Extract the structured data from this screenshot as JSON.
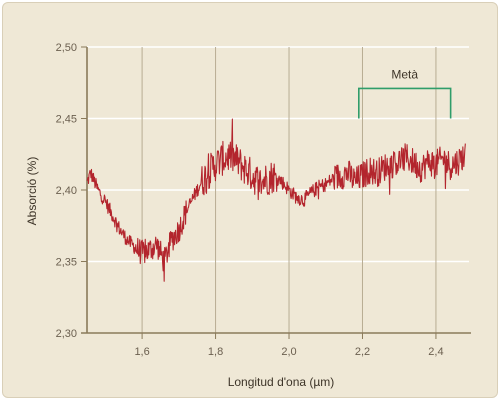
{
  "chart_data": {
    "type": "line",
    "xlabel": "Longitud d'ona (µm)",
    "ylabel": "Absorció (%)",
    "xlim": [
      1.45,
      2.49
    ],
    "ylim": [
      2.3,
      2.5
    ],
    "x_ticks": [
      "1,6",
      "1,8",
      "2,0",
      "2,2",
      "2,4"
    ],
    "x_tick_values": [
      1.6,
      1.8,
      2.0,
      2.2,
      2.4
    ],
    "y_ticks": [
      "2,50",
      "2,45",
      "2,40",
      "2,35",
      "2,30"
    ],
    "y_tick_values": [
      2.5,
      2.45,
      2.4,
      2.35,
      2.3
    ],
    "grid": true,
    "series": [
      {
        "color": "#b3252d",
        "x": [
          1.45,
          1.46,
          1.48,
          1.5,
          1.52,
          1.54,
          1.56,
          1.58,
          1.6,
          1.62,
          1.64,
          1.66,
          1.68,
          1.7,
          1.72,
          1.74,
          1.76,
          1.78,
          1.8,
          1.82,
          1.84,
          1.86,
          1.88,
          1.9,
          1.92,
          1.94,
          1.96,
          1.98,
          2.0,
          2.02,
          2.04,
          2.06,
          2.08,
          2.1,
          2.12,
          2.14,
          2.16,
          2.18,
          2.2,
          2.22,
          2.24,
          2.26,
          2.28,
          2.3,
          2.32,
          2.34,
          2.36,
          2.38,
          2.4,
          2.42,
          2.44,
          2.46,
          2.48
        ],
        "y": [
          2.405,
          2.412,
          2.4,
          2.392,
          2.382,
          2.372,
          2.365,
          2.36,
          2.356,
          2.358,
          2.362,
          2.35,
          2.365,
          2.372,
          2.385,
          2.395,
          2.405,
          2.412,
          2.418,
          2.422,
          2.424,
          2.42,
          2.415,
          2.41,
          2.405,
          2.408,
          2.41,
          2.406,
          2.4,
          2.395,
          2.393,
          2.398,
          2.402,
          2.404,
          2.408,
          2.41,
          2.412,
          2.406,
          2.41,
          2.414,
          2.412,
          2.416,
          2.418,
          2.42,
          2.423,
          2.419,
          2.415,
          2.42,
          2.418,
          2.422,
          2.417,
          2.42,
          2.425
        ]
      }
    ],
    "annotations": [
      {
        "label": "Metà",
        "x_start": 2.19,
        "x_end": 2.44,
        "y": 2.471,
        "y_bottom": 2.45
      }
    ]
  },
  "colors": {
    "background": "#efe8d6",
    "axis": "#8a7a5a",
    "grid_h": "#ffffff",
    "grid_v": "#b8ad93",
    "line": "#b3252d",
    "bracket": "#2f9d6a"
  }
}
